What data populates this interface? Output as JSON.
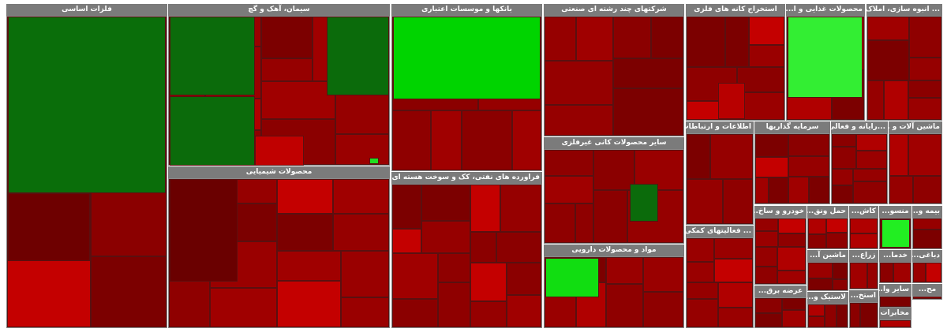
{
  "sectors": [
    {
      "title": "فلزات اساسی"
    },
    {
      "title": "سیمان، آهک و گچ"
    },
    {
      "title": "محصولات شیمیایی"
    },
    {
      "title": "بانکها و موسسات اعتباری"
    },
    {
      "title": "فراورده های نفتی، کک و سوخت هسته ای"
    },
    {
      "title": "شرکتهای چند رشته ای صنعتی"
    },
    {
      "title": "سایر محصولات کانی غیرفلزی"
    },
    {
      "title": "مواد و محصولات دارویی"
    },
    {
      "title": "استخراج کانه های فلزی"
    },
    {
      "title": "محصولات غذایی و ا..."
    },
    {
      "title": "... انبوه سازی، املاک و"
    },
    {
      "title": "اطلاعات و ارتباطات"
    },
    {
      "title": "سرمایه گذاریها"
    },
    {
      "title": "...رایانه و فعالی"
    },
    {
      "title": "ماشین آلات و ..."
    },
    {
      "title": "... فعالیتهای کمکی"
    },
    {
      "title": "خودرو و ساخ..."
    },
    {
      "title": "حمل ونق..."
    },
    {
      "title": "کاش..."
    },
    {
      "title": "منسو..."
    },
    {
      "title": "بیمه و..."
    },
    {
      "title": "ماشین آ..."
    },
    {
      "title": "زراع..."
    },
    {
      "title": "خدما..."
    },
    {
      "title": "دباغی..."
    },
    {
      "title": "عرضه برق..."
    },
    {
      "title": "لاستیک و..."
    },
    {
      "title": "استخ..."
    },
    {
      "title": "سایر وا..."
    },
    {
      "title": "مح..."
    },
    {
      "title": "مخابرات"
    }
  ]
}
